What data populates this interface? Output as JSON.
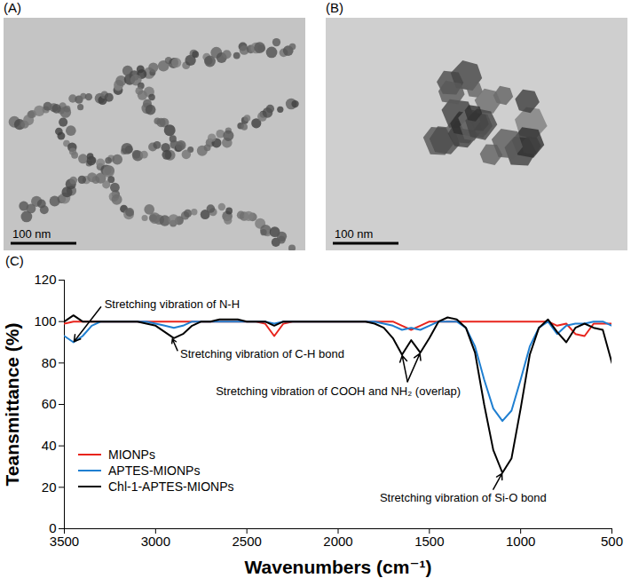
{
  "images": [
    {
      "label": "(A)",
      "scale_bar": "100 nm"
    },
    {
      "label": "(B)",
      "scale_bar": "100 nm"
    }
  ],
  "chart_data": {
    "panel_label": "(C)",
    "type": "line",
    "xlabel": "Wavenumbers (cm⁻¹)",
    "ylabel": "Teansmittance (%)",
    "x": [
      3500,
      3450,
      3400,
      3350,
      3300,
      3250,
      3200,
      3150,
      3100,
      3050,
      3000,
      2950,
      2900,
      2850,
      2800,
      2750,
      2700,
      2650,
      2600,
      2550,
      2500,
      2450,
      2400,
      2350,
      2300,
      2250,
      2200,
      2150,
      2100,
      2050,
      2000,
      1950,
      1900,
      1850,
      1800,
      1750,
      1700,
      1650,
      1600,
      1550,
      1500,
      1450,
      1400,
      1350,
      1300,
      1250,
      1200,
      1150,
      1100,
      1050,
      1000,
      950,
      900,
      850,
      800,
      750,
      700,
      650,
      600,
      550,
      500
    ],
    "xlim": [
      3500,
      500
    ],
    "xticks": [
      3500,
      3000,
      2500,
      2000,
      1500,
      1000,
      500
    ],
    "ylim": [
      0,
      120
    ],
    "yticks": [
      0,
      20,
      40,
      60,
      80,
      100,
      120
    ],
    "legend": "bottom-left",
    "series": [
      {
        "name": "MIONPs",
        "color": "#e8241c",
        "values": [
          99,
          100,
          100,
          100,
          100,
          100,
          100,
          100,
          100,
          100,
          100,
          100,
          100,
          100,
          100,
          100,
          100,
          100,
          100,
          100,
          100,
          100,
          99,
          93,
          99,
          100,
          100,
          100,
          100,
          100,
          100,
          100,
          100,
          100,
          100,
          100,
          100,
          98,
          96,
          98,
          100,
          100,
          100,
          100,
          100,
          100,
          100,
          100,
          100,
          100,
          100,
          100,
          100,
          100,
          98,
          99,
          94,
          93,
          99,
          99,
          99
        ]
      },
      {
        "name": "APTES-MIONPs",
        "color": "#1f7fd1",
        "values": [
          93,
          90,
          93,
          98,
          100,
          100,
          100,
          100,
          100,
          100,
          99,
          98,
          97,
          98,
          100,
          100,
          100,
          100,
          100,
          100,
          100,
          100,
          100,
          99,
          100,
          100,
          100,
          100,
          100,
          100,
          100,
          100,
          100,
          100,
          100,
          99,
          98,
          96,
          97,
          96,
          98,
          100,
          100,
          100,
          97,
          88,
          72,
          58,
          52,
          57,
          72,
          88,
          97,
          100,
          94,
          98,
          99,
          99,
          100,
          100,
          98
        ]
      },
      {
        "name": "Chl-1-APTES-MIONPs",
        "color": "#000000",
        "values": [
          100,
          103,
          100,
          100,
          100,
          100,
          100,
          100,
          100,
          99,
          98,
          95,
          92,
          94,
          98,
          100,
          100,
          101,
          101,
          101,
          100,
          100,
          100,
          98,
          100,
          100,
          100,
          100,
          100,
          100,
          100,
          100,
          100,
          100,
          99,
          97,
          92,
          84,
          91,
          85,
          92,
          100,
          102,
          101,
          97,
          85,
          60,
          38,
          27,
          34,
          58,
          84,
          97,
          101,
          95,
          90,
          97,
          99,
          97,
          96,
          80
        ]
      }
    ],
    "annotations": [
      {
        "text": "Stretching vibration of N-H",
        "xytext": [
          3300,
          107
        ],
        "xy": [
          [
            3450,
            90
          ]
        ]
      },
      {
        "text": "Stretching vibration of C-H bond",
        "xytext": [
          2880,
          86
        ],
        "xy": [
          [
            2910,
            92
          ]
        ]
      },
      {
        "text": "Stretching vibration of COOH and NH₂ (overlap)",
        "xytext": [
          1620,
          71
        ],
        "xy": [
          [
            1650,
            84
          ],
          [
            1550,
            85
          ]
        ]
      },
      {
        "text": "Stretching vibration of Si-O bond",
        "xytext": [
          1150,
          19
        ],
        "xy": [
          [
            1100,
            27
          ]
        ]
      }
    ]
  }
}
